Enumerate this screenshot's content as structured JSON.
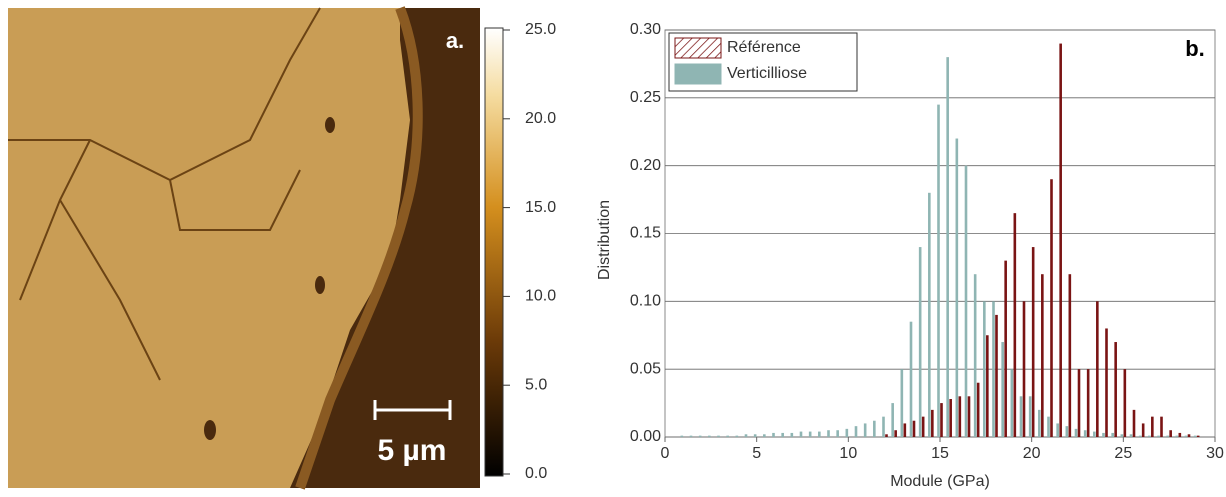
{
  "chart_data": [
    {
      "type": "image",
      "panel_label": "a.",
      "scale_bar": "5 µm",
      "clim": [
        0,
        25
      ],
      "cticks": [
        {
          "value": 0,
          "label": "0.0"
        },
        {
          "value": 5,
          "label": "5.0"
        },
        {
          "value": 10,
          "label": "10.0"
        },
        {
          "value": 15,
          "label": "15.0"
        },
        {
          "value": 20,
          "label": "20.0"
        },
        {
          "value": 25,
          "label": "25.0"
        }
      ]
    },
    {
      "type": "bar",
      "panel_label": "b.",
      "x_label": "Module (GPa)",
      "y_label": "Distribution",
      "xlim": [
        0,
        30
      ],
      "xticks": [
        0,
        5,
        10,
        15,
        20,
        25,
        30
      ],
      "ylim": [
        0,
        0.3
      ],
      "yticks": [
        {
          "value": 0,
          "label": "0.00"
        },
        {
          "value": 0.05,
          "label": "0.05"
        },
        {
          "value": 0.1,
          "label": "0.10"
        },
        {
          "value": 0.15,
          "label": "0.15"
        },
        {
          "value": 0.2,
          "label": "0.20"
        },
        {
          "value": 0.25,
          "label": "0.25"
        },
        {
          "value": 0.3,
          "label": "0.30"
        }
      ],
      "grid": true,
      "legend": "upper left",
      "x": [
        1,
        1.5,
        2,
        2.5,
        3,
        3.5,
        4,
        4.5,
        5,
        5.5,
        6,
        6.5,
        7,
        7.5,
        8,
        8.5,
        9,
        9.5,
        10,
        10.5,
        11,
        11.5,
        12,
        12.5,
        13,
        13.5,
        14,
        14.5,
        15,
        15.5,
        16,
        16.5,
        17,
        17.5,
        18,
        18.5,
        19,
        19.5,
        20,
        20.5,
        21,
        21.5,
        22,
        22.5,
        23,
        23.5,
        24,
        24.5,
        25,
        25.5,
        26,
        26.5,
        27,
        27.5,
        28,
        28.5,
        29
      ],
      "series": [
        {
          "name": "Référence",
          "color": "#7a1414",
          "values": [
            0,
            0,
            0,
            0,
            0,
            0,
            0,
            0,
            0,
            0,
            0,
            0,
            0,
            0,
            0,
            0,
            0,
            0,
            0,
            0,
            0,
            0,
            0.002,
            0.005,
            0.01,
            0.012,
            0.015,
            0.02,
            0.025,
            0.028,
            0.03,
            0.03,
            0.04,
            0.075,
            0.09,
            0.13,
            0.165,
            0.1,
            0.14,
            0.12,
            0.19,
            0.29,
            0.12,
            0.05,
            0.05,
            0.1,
            0.08,
            0.07,
            0.05,
            0.02,
            0.01,
            0.015,
            0.015,
            0.005,
            0.003,
            0.002,
            0.001
          ]
        },
        {
          "name": "Verticilliose",
          "color": "#8fb5b3",
          "values": [
            0.001,
            0.001,
            0.001,
            0.001,
            0.001,
            0.001,
            0.001,
            0.002,
            0.002,
            0.002,
            0.003,
            0.003,
            0.003,
            0.004,
            0.004,
            0.004,
            0.005,
            0.005,
            0.006,
            0.008,
            0.01,
            0.012,
            0.015,
            0.025,
            0.05,
            0.085,
            0.14,
            0.18,
            0.245,
            0.28,
            0.22,
            0.2,
            0.12,
            0.1,
            0.1,
            0.07,
            0.05,
            0.03,
            0.03,
            0.02,
            0.015,
            0.01,
            0.008,
            0.006,
            0.005,
            0.004,
            0.003,
            0.003,
            0.002,
            0.002,
            0.001,
            0.001,
            0.001,
            0.001,
            0.001,
            0.001,
            0.001
          ]
        }
      ]
    }
  ]
}
